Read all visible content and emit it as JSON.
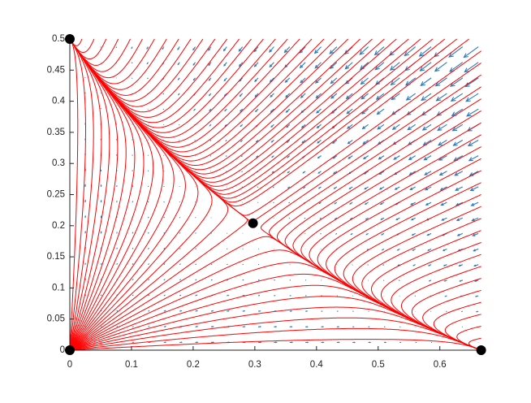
{
  "chart_data": {
    "type": "phase-portrait",
    "x": [
      0,
      0,
      0.667,
      0.297
    ],
    "y": [
      0,
      0.5,
      0,
      0.204
    ],
    "point_color": "#000000",
    "streamline_color": "#ff0000",
    "arrow_color": "#2b7bbd",
    "xlim": [
      0,
      0.667
    ],
    "ylim": [
      0,
      0.5
    ],
    "xticks": [
      0,
      0.1,
      0.2,
      0.3,
      0.4,
      0.5,
      0.6
    ],
    "yticks": [
      0,
      0.05,
      0.1,
      0.15,
      0.2,
      0.25,
      0.3,
      0.35,
      0.4,
      0.45,
      0.5
    ]
  }
}
